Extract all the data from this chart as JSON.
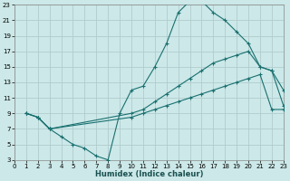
{
  "xlabel": "Humidex (Indice chaleur)",
  "bg_color": "#cce8e8",
  "grid_color": "#b0cccc",
  "line_color": "#1a7070",
  "xlim": [
    0,
    23
  ],
  "ylim": [
    3,
    23
  ],
  "xticks": [
    0,
    1,
    2,
    3,
    4,
    5,
    6,
    7,
    8,
    9,
    10,
    11,
    12,
    13,
    14,
    15,
    16,
    17,
    18,
    19,
    20,
    21,
    22,
    23
  ],
  "yticks": [
    3,
    5,
    7,
    9,
    11,
    13,
    15,
    17,
    19,
    21,
    23
  ],
  "line1_x": [
    1,
    2,
    3,
    4,
    5,
    6,
    7,
    8,
    9,
    10,
    11,
    12,
    13,
    14,
    15,
    16,
    17,
    18,
    19,
    20,
    21,
    22,
    23
  ],
  "line1_y": [
    9,
    8.5,
    7,
    6,
    5,
    4.5,
    3.5,
    3,
    9,
    12,
    12.5,
    15,
    18,
    22,
    23.5,
    23.5,
    22,
    21,
    19.5,
    18,
    15,
    14.5,
    12
  ],
  "line2_x": [
    1,
    2,
    3,
    10,
    11,
    12,
    13,
    14,
    15,
    16,
    17,
    18,
    19,
    20,
    21,
    22,
    23
  ],
  "line2_y": [
    9,
    8.5,
    7,
    9,
    9.5,
    10.5,
    11.5,
    12.5,
    13.5,
    14.5,
    15.5,
    16,
    16.5,
    17,
    15,
    14.5,
    10
  ],
  "line3_x": [
    1,
    2,
    3,
    10,
    11,
    12,
    13,
    14,
    15,
    16,
    17,
    18,
    19,
    20,
    21,
    22,
    23
  ],
  "line3_y": [
    9,
    8.5,
    7,
    8.5,
    9,
    9.5,
    10,
    10.5,
    11,
    11.5,
    12,
    12.5,
    13,
    13.5,
    14,
    9.5,
    9.5
  ]
}
